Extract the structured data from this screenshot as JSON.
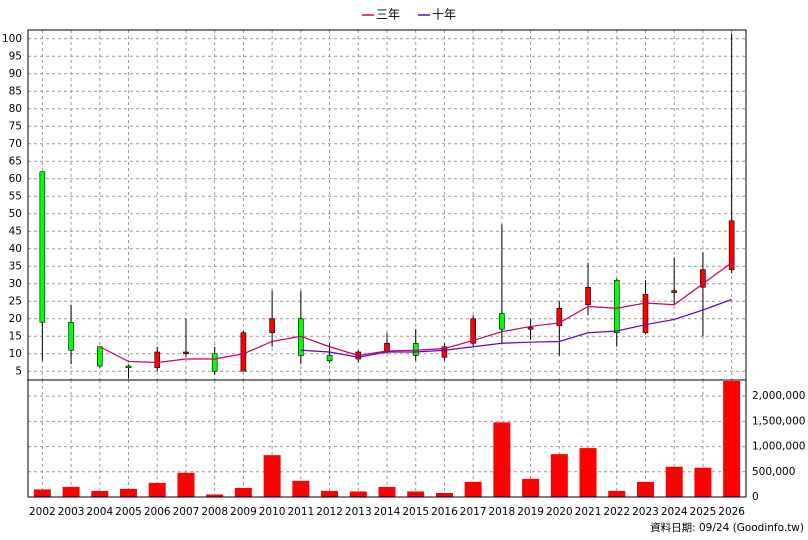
{
  "chart_data": [
    {
      "type": "candlestick",
      "categories": [
        "2002",
        "2003",
        "2004",
        "2005",
        "2006",
        "2007",
        "2008",
        "2009",
        "2010",
        "2011",
        "2012",
        "2013",
        "2014",
        "2015",
        "2016",
        "2017",
        "2018",
        "2019",
        "2020",
        "2021",
        "2022",
        "2023",
        "2024",
        "2025",
        "2026"
      ],
      "open": [
        62,
        19,
        12,
        6.5,
        6,
        10,
        10,
        5,
        16,
        20,
        9.5,
        8.5,
        10.5,
        13,
        9,
        13,
        21.5,
        17,
        18,
        24,
        31,
        16,
        27.5,
        29,
        34
      ],
      "high": [
        62,
        24,
        12,
        7,
        12,
        20,
        12,
        16.5,
        28,
        28,
        13,
        11,
        16,
        17,
        13,
        21,
        47,
        20,
        25,
        36,
        31.5,
        31,
        37.5,
        39,
        101.5
      ],
      "low": [
        8,
        7,
        6,
        3,
        5,
        9,
        4,
        5,
        12,
        7,
        7.5,
        7.5,
        10,
        8,
        8,
        12,
        13,
        14,
        9.5,
        21,
        12,
        15.5,
        24,
        15,
        33
      ],
      "close": [
        19,
        11,
        6.5,
        6,
        10.5,
        10.5,
        5,
        16,
        20,
        9.5,
        8,
        10.5,
        13,
        9.5,
        12,
        20,
        17,
        17.5,
        23,
        29,
        16,
        27,
        28,
        34,
        48
      ],
      "up_color": "#ff0000",
      "down_color": "#00ff00",
      "series": [
        {
          "name": "三年",
          "color": "#cc0066",
          "values": [
            null,
            null,
            12,
            7.8,
            7.5,
            8.5,
            8.5,
            10,
            13.5,
            15,
            12,
            9.5,
            10.8,
            11,
            11.5,
            13.8,
            16.3,
            17.8,
            18.8,
            23.5,
            23,
            24.5,
            24,
            30,
            36
          ]
        },
        {
          "name": "十年",
          "color": "#6600cc",
          "values": [
            null,
            null,
            null,
            null,
            null,
            null,
            null,
            null,
            null,
            11,
            10.5,
            9,
            10.5,
            10.5,
            11,
            12,
            13,
            13.3,
            13.5,
            16,
            16.5,
            18.3,
            19.8,
            22.5,
            25.5
          ]
        }
      ],
      "ylim": [
        2.5,
        102.5
      ],
      "yticks": [
        5,
        10,
        15,
        20,
        25,
        30,
        35,
        40,
        45,
        50,
        55,
        60,
        65,
        70,
        75,
        80,
        85,
        90,
        95,
        100
      ],
      "grid": true
    },
    {
      "type": "bar",
      "categories": [
        "2002",
        "2003",
        "2004",
        "2005",
        "2006",
        "2007",
        "2008",
        "2009",
        "2010",
        "2011",
        "2012",
        "2013",
        "2014",
        "2015",
        "2016",
        "2017",
        "2018",
        "2019",
        "2020",
        "2021",
        "2022",
        "2023",
        "2024",
        "2025",
        "2026"
      ],
      "values": [
        150000,
        200000,
        120000,
        160000,
        280000,
        480000,
        50000,
        180000,
        830000,
        320000,
        120000,
        110000,
        200000,
        110000,
        80000,
        300000,
        1480000,
        360000,
        850000,
        970000,
        120000,
        300000,
        600000,
        580000,
        2300000
      ],
      "color": "#ff0000",
      "ylim": [
        0,
        2320000
      ],
      "yticks": [
        0,
        {
          "value": 500000,
          "label": "500,000"
        },
        {
          "value": 1000000,
          "label": "1,000,000"
        },
        {
          "value": 1500000,
          "label": "1,500,000"
        },
        {
          "value": 2000000,
          "label": "2,000,000"
        }
      ],
      "grid": true,
      "footer": "資料日期: 09/24 (Goodinfo.tw)"
    }
  ]
}
